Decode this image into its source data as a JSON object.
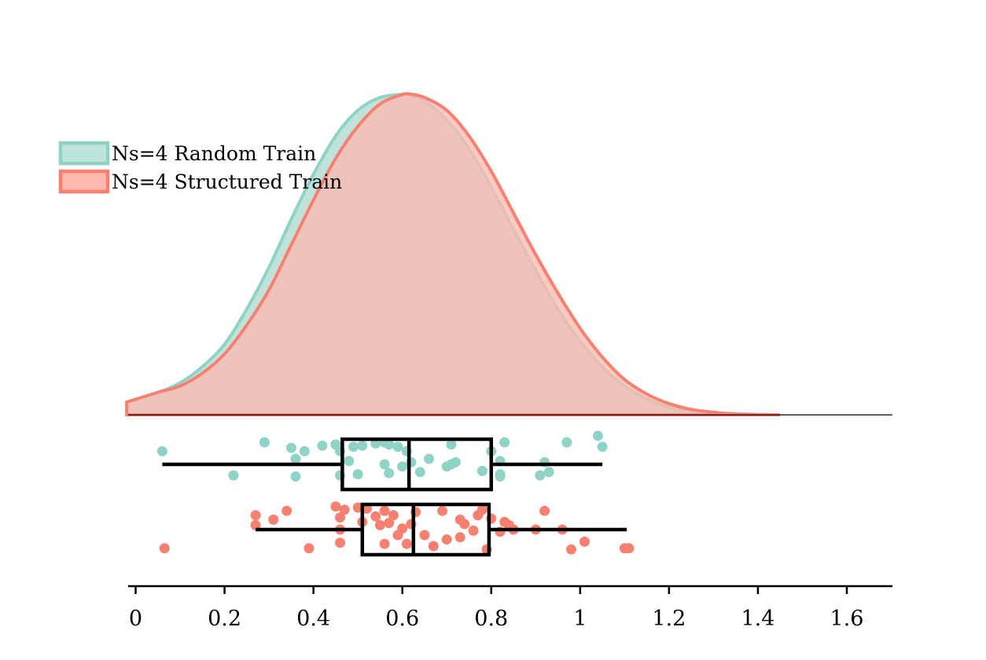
{
  "chart_data": {
    "type": "raincloud",
    "title": "",
    "xlabel": "",
    "ylabel": "",
    "xlim": [
      -0.02,
      1.71
    ],
    "xticks": [
      0,
      0.2,
      0.4,
      0.6,
      0.8,
      1,
      1.2,
      1.4,
      1.6
    ],
    "xtick_labels": [
      "0",
      "0.2",
      "0.4",
      "0.6",
      "0.8",
      "1",
      "1.2",
      "1.4",
      "1.6"
    ],
    "legend": {
      "placement": "upper-left"
    },
    "series": [
      {
        "name": "Ns=4 Random Train",
        "fill_color": "#bfe3da",
        "edge_color": "#8fd3c6",
        "density": {
          "x": [
            -0.02,
            0.05,
            0.1,
            0.15,
            0.2,
            0.25,
            0.3,
            0.35,
            0.4,
            0.45,
            0.5,
            0.55,
            0.6,
            0.61,
            0.65,
            0.7,
            0.75,
            0.8,
            0.85,
            0.9,
            0.95,
            1.0,
            1.05,
            1.1,
            1.15,
            1.2,
            1.25,
            1.3,
            1.35,
            1.4
          ],
          "y": [
            0.04,
            0.07,
            0.1,
            0.15,
            0.22,
            0.33,
            0.46,
            0.61,
            0.75,
            0.87,
            0.95,
            0.99,
            1.0,
            1.0,
            0.98,
            0.92,
            0.83,
            0.71,
            0.58,
            0.45,
            0.33,
            0.23,
            0.15,
            0.09,
            0.05,
            0.025,
            0.012,
            0.005,
            0.002,
            0.0
          ]
        },
        "box": {
          "whisker_low": 0.06,
          "q1": 0.465,
          "median": 0.615,
          "q3": 0.8,
          "whisker_high": 1.05
        },
        "points": [
          [
            0.06,
            0.6
          ],
          [
            0.22,
            -0.5
          ],
          [
            0.29,
            1.0
          ],
          [
            0.35,
            0.75
          ],
          [
            0.36,
            0.25
          ],
          [
            0.36,
            -0.55
          ],
          [
            0.38,
            0.6
          ],
          [
            0.42,
            0.85
          ],
          [
            0.45,
            0.9
          ],
          [
            0.46,
            0.6
          ],
          [
            0.46,
            -0.5
          ],
          [
            0.48,
            0.15
          ],
          [
            0.49,
            0.8
          ],
          [
            0.5,
            -0.45
          ],
          [
            0.51,
            0.85
          ],
          [
            0.54,
            0.95
          ],
          [
            0.56,
            1.0
          ],
          [
            0.56,
            0.0
          ],
          [
            0.57,
            0.9
          ],
          [
            0.57,
            -0.4
          ],
          [
            0.59,
            0.8
          ],
          [
            0.6,
            -0.1
          ],
          [
            0.61,
            0.6
          ],
          [
            0.62,
            0.1
          ],
          [
            0.64,
            -0.35
          ],
          [
            0.66,
            0.25
          ],
          [
            0.7,
            -0.1
          ],
          [
            0.71,
            0.9
          ],
          [
            0.71,
            0.0
          ],
          [
            0.72,
            0.1
          ],
          [
            0.78,
            -0.3
          ],
          [
            0.8,
            0.6
          ],
          [
            0.82,
            0.15
          ],
          [
            0.82,
            -0.45
          ],
          [
            0.82,
            -0.55
          ],
          [
            0.83,
            1.0
          ],
          [
            0.91,
            -0.5
          ],
          [
            0.92,
            0.1
          ],
          [
            0.93,
            -0.35
          ],
          [
            0.97,
            1.0
          ],
          [
            1.04,
            1.3
          ],
          [
            1.05,
            0.8
          ]
        ]
      },
      {
        "name": "Ns=4 Structured Train",
        "fill_color": "#ffb8ae",
        "edge_color": "#f88070",
        "density": {
          "x": [
            -0.02,
            0.05,
            0.1,
            0.15,
            0.2,
            0.25,
            0.3,
            0.35,
            0.4,
            0.45,
            0.5,
            0.55,
            0.6,
            0.62,
            0.65,
            0.7,
            0.75,
            0.8,
            0.85,
            0.9,
            0.95,
            1.0,
            1.05,
            1.1,
            1.15,
            1.2,
            1.25,
            1.3,
            1.35,
            1.4,
            1.45
          ],
          "y": [
            0.04,
            0.07,
            0.09,
            0.13,
            0.19,
            0.28,
            0.39,
            0.53,
            0.67,
            0.8,
            0.9,
            0.97,
            0.999,
            1.0,
            0.99,
            0.95,
            0.87,
            0.76,
            0.63,
            0.5,
            0.38,
            0.27,
            0.18,
            0.11,
            0.065,
            0.035,
            0.017,
            0.008,
            0.003,
            0.001,
            0.0
          ]
        },
        "box": {
          "whisker_low": 0.27,
          "q1": 0.51,
          "median": 0.625,
          "q3": 0.795,
          "whisker_high": 1.105
        },
        "points": [
          [
            0.065,
            -0.85
          ],
          [
            0.27,
            0.65
          ],
          [
            0.27,
            0.2
          ],
          [
            0.31,
            0.45
          ],
          [
            0.34,
            0.85
          ],
          [
            0.39,
            -0.85
          ],
          [
            0.45,
            1.05
          ],
          [
            0.46,
            0.55
          ],
          [
            0.46,
            -0.6
          ],
          [
            0.46,
            0.0
          ],
          [
            0.47,
            0.9
          ],
          [
            0.5,
            1.0
          ],
          [
            0.51,
            0.35
          ],
          [
            0.52,
            0.95
          ],
          [
            0.54,
            0.6
          ],
          [
            0.55,
            0.2
          ],
          [
            0.56,
            -0.65
          ],
          [
            0.56,
            0.85
          ],
          [
            0.57,
            0.3
          ],
          [
            0.58,
            0.65
          ],
          [
            0.59,
            -0.25
          ],
          [
            0.6,
            0.05
          ],
          [
            0.61,
            -0.65
          ],
          [
            0.62,
            0.25
          ],
          [
            0.63,
            0.8
          ],
          [
            0.65,
            -0.25
          ],
          [
            0.67,
            -0.75
          ],
          [
            0.69,
            0.85
          ],
          [
            0.7,
            -0.45
          ],
          [
            0.73,
            0.45
          ],
          [
            0.73,
            -0.35
          ],
          [
            0.74,
            0.25
          ],
          [
            0.76,
            -0.05
          ],
          [
            0.77,
            0.65
          ],
          [
            0.78,
            0.9
          ],
          [
            0.79,
            -0.9
          ],
          [
            0.8,
            0.5
          ],
          [
            0.82,
            -0.1
          ],
          [
            0.83,
            0.35
          ],
          [
            0.84,
            0.2
          ],
          [
            0.85,
            0.0
          ],
          [
            0.9,
            0.0
          ],
          [
            0.92,
            0.85
          ],
          [
            0.96,
            0.0
          ],
          [
            0.98,
            -0.9
          ],
          [
            1.01,
            -0.55
          ],
          [
            1.1,
            -0.85
          ],
          [
            1.11,
            -0.85
          ]
        ]
      }
    ]
  }
}
